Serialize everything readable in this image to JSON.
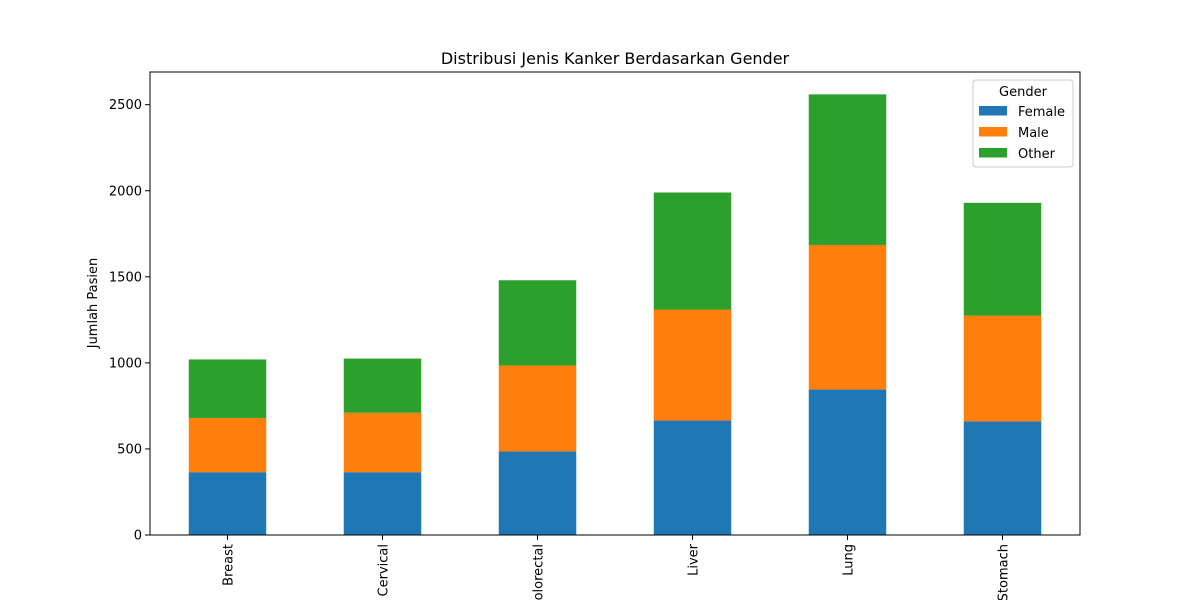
{
  "chart_data": {
    "type": "bar",
    "stacked": true,
    "title": "Distribusi Jenis Kanker Berdasarkan Gender",
    "xlabel": "",
    "ylabel": "Jumlah Pasien",
    "categories": [
      "Breast",
      "Cervical",
      "Colorectal",
      "Liver",
      "Lung",
      "Stomach"
    ],
    "series": [
      {
        "name": "Female",
        "color": "#1f77b4",
        "values": [
          365,
          365,
          485,
          665,
          845,
          660
        ]
      },
      {
        "name": "Male",
        "color": "#ff7f0e",
        "values": [
          315,
          345,
          500,
          645,
          840,
          615
        ]
      },
      {
        "name": "Other",
        "color": "#2ca02c",
        "values": [
          340,
          315,
          495,
          680,
          875,
          655
        ]
      }
    ],
    "ylim": [
      0,
      2690
    ],
    "yticks": [
      0,
      500,
      1000,
      1500,
      2000,
      2500
    ],
    "legend": {
      "title": "Gender",
      "placement": "top-right"
    },
    "grid": false
  }
}
